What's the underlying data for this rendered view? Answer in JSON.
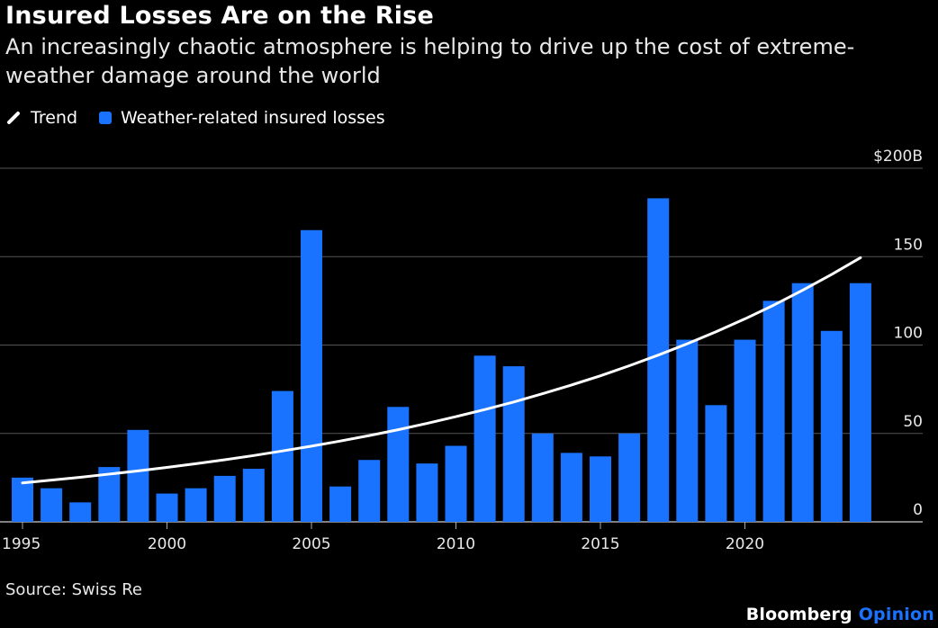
{
  "header": {
    "title": "Insured Losses Are on the Rise",
    "subtitle": "An increasingly chaotic atmosphere is helping to drive up the cost of extreme-weather damage around the world"
  },
  "legend": {
    "trend_label": "Trend",
    "bars_label": "Weather-related insured losses"
  },
  "footer": {
    "source": "Source: Swiss Re",
    "brand_main": "Bloomberg",
    "brand_sub": "Opinion"
  },
  "colors": {
    "bar": "#1a73ff",
    "trend": "#ffffff",
    "grid": "#555555",
    "background": "#000000"
  },
  "chart_data": {
    "type": "bar",
    "categories": [
      1995,
      1996,
      1997,
      1998,
      1999,
      2000,
      2001,
      2002,
      2003,
      2004,
      2005,
      2006,
      2007,
      2008,
      2009,
      2010,
      2011,
      2012,
      2013,
      2014,
      2015,
      2016,
      2017,
      2018,
      2019,
      2020,
      2021,
      2022,
      2023,
      2024
    ],
    "series": [
      {
        "name": "Weather-related insured losses",
        "values": [
          25,
          19,
          11,
          31,
          52,
          16,
          19,
          26,
          30,
          74,
          165,
          20,
          35,
          65,
          33,
          43,
          94,
          88,
          50,
          39,
          37,
          50,
          183,
          103,
          66,
          103,
          125,
          135,
          108,
          135
        ]
      },
      {
        "name": "Trend",
        "values": [
          22,
          23.6,
          25.2,
          27,
          28.8,
          30.8,
          32.9,
          35.1,
          37.5,
          40.1,
          42.8,
          45.7,
          48.8,
          52.1,
          55.7,
          59.5,
          63.5,
          67.8,
          72.5,
          77.4,
          82.6,
          88.3,
          94.3,
          100.7,
          107.5,
          114.8,
          122.6,
          131,
          139.9,
          149.4
        ]
      }
    ],
    "y_ticks": [
      "0",
      "50",
      "100",
      "150",
      "$200B"
    ],
    "y_tick_values": [
      0,
      50,
      100,
      150,
      200
    ],
    "x_ticks": [
      "1995",
      "2000",
      "2005",
      "2010",
      "2015",
      "2020"
    ],
    "x_tick_values": [
      1995,
      2000,
      2005,
      2010,
      2015,
      2020
    ],
    "ylim": [
      0,
      200
    ],
    "grid": true,
    "legend_position": "top-left"
  }
}
